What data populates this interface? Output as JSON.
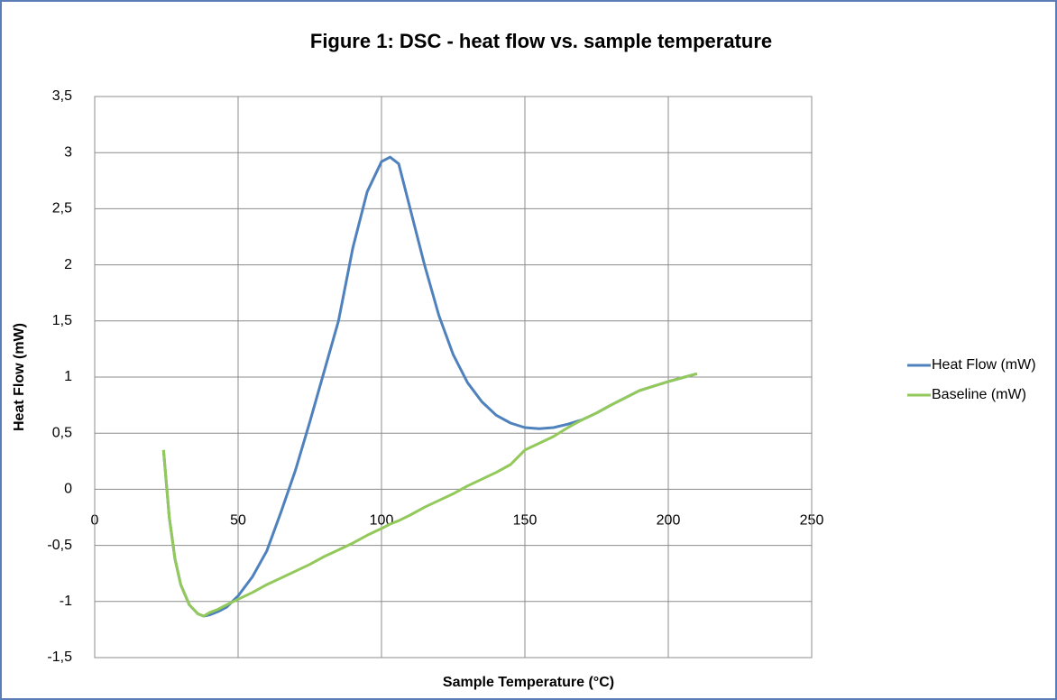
{
  "chart_data": {
    "type": "line",
    "title": "Figure 1: DSC - heat flow vs. sample temperature",
    "x_label": "Sample Temperature (°C)",
    "y_label": "Heat Flow (mW)",
    "x": [
      24,
      26,
      28,
      30,
      33,
      36,
      38,
      40,
      43,
      46,
      50,
      55,
      60,
      65,
      70,
      75,
      80,
      85,
      90,
      95,
      100,
      103,
      106,
      110,
      115,
      120,
      125,
      130,
      135,
      140,
      145,
      150,
      155,
      160,
      165,
      170,
      175,
      180,
      190,
      200,
      210
    ],
    "series": [
      {
        "name": "Heat Flow (mW)",
        "color": "#4f81bd",
        "values": [
          0.35,
          -0.25,
          -0.62,
          -0.85,
          -1.03,
          -1.11,
          -1.13,
          -1.12,
          -1.09,
          -1.05,
          -0.95,
          -0.78,
          -0.55,
          -0.2,
          0.17,
          0.6,
          1.05,
          1.5,
          2.15,
          2.65,
          2.92,
          2.96,
          2.9,
          2.5,
          2.0,
          1.55,
          1.2,
          0.95,
          0.78,
          0.66,
          0.59,
          0.55,
          0.54,
          0.55,
          0.58,
          0.62,
          0.68,
          0.75,
          0.88,
          0.96,
          1.03
        ]
      },
      {
        "name": "Baseline (mW)",
        "color": "#92c95a",
        "values": [
          0.35,
          -0.25,
          -0.62,
          -0.85,
          -1.03,
          -1.11,
          -1.13,
          -1.1,
          -1.07,
          -1.03,
          -0.98,
          -0.92,
          -0.85,
          -0.79,
          -0.73,
          -0.67,
          -0.6,
          -0.54,
          -0.48,
          -0.41,
          -0.35,
          -0.31,
          -0.28,
          -0.23,
          -0.16,
          -0.1,
          -0.04,
          0.03,
          0.09,
          0.15,
          0.22,
          0.35,
          0.41,
          0.47,
          0.55,
          0.62,
          0.68,
          0.75,
          0.88,
          0.96,
          1.03
        ]
      }
    ],
    "xlim": [
      0,
      250
    ],
    "xticks": [
      0,
      50,
      100,
      150,
      200,
      250
    ],
    "ylim": [
      -1.5,
      3.5
    ],
    "yticks": [
      {
        "value": -1.5,
        "label": "-1,5"
      },
      -1,
      {
        "value": -0.5,
        "label": "-0,5"
      },
      0,
      {
        "value": 0.5,
        "label": "0,5"
      },
      1,
      {
        "value": 1.5,
        "label": "1,5"
      },
      2,
      {
        "value": 2.5,
        "label": "2,5"
      },
      3,
      {
        "value": 3.5,
        "label": "3,5"
      }
    ],
    "grid": true,
    "legend": "right"
  }
}
